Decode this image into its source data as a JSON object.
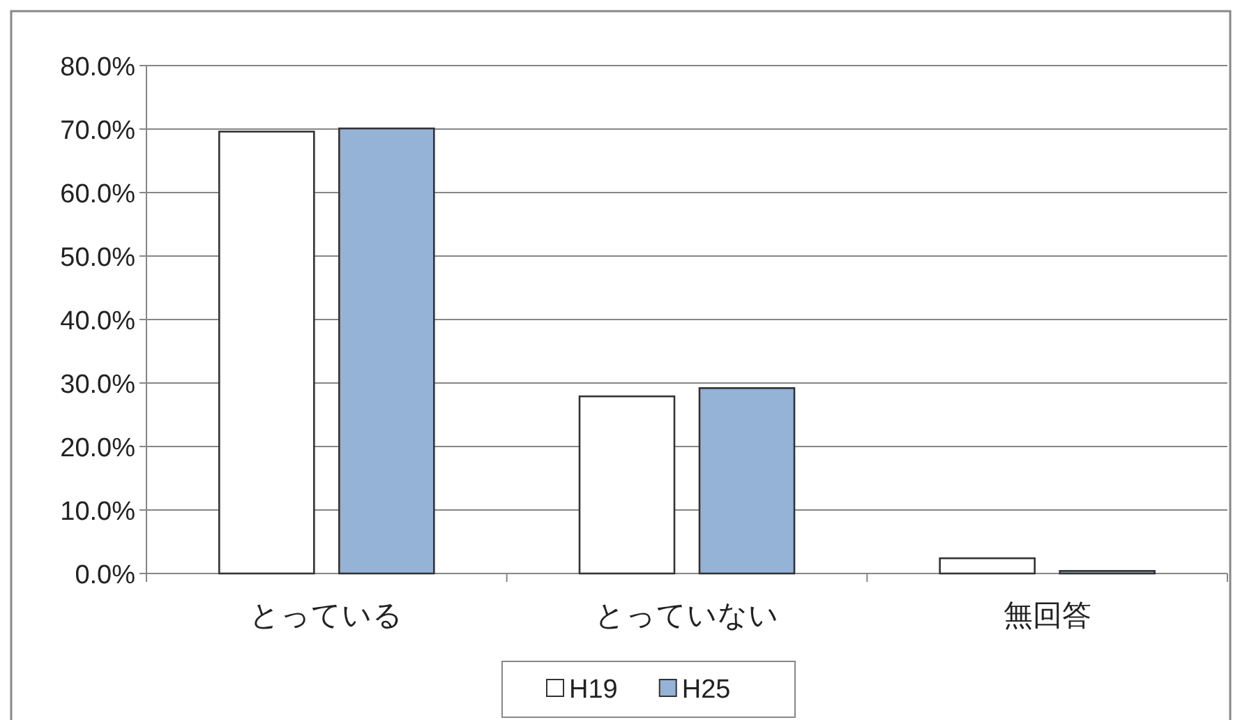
{
  "chart_data": {
    "type": "bar",
    "categories": [
      "とっている",
      "とっていない",
      "無回答"
    ],
    "series": [
      {
        "name": "H19",
        "color": "#ffffff",
        "values": [
          69.6,
          27.9,
          2.4
        ]
      },
      {
        "name": "H25",
        "color": "#95b3d7",
        "values": [
          70.1,
          29.2,
          0.4
        ]
      }
    ],
    "ylim": [
      0,
      80
    ],
    "yticks": [
      {
        "value": 0,
        "label": "0.0%"
      },
      {
        "value": 10,
        "label": "10.0%"
      },
      {
        "value": 20,
        "label": "20.0%"
      },
      {
        "value": 30,
        "label": "30.0%"
      },
      {
        "value": 40,
        "label": "40.0%"
      },
      {
        "value": 50,
        "label": "50.0%"
      },
      {
        "value": 60,
        "label": "60.0%"
      },
      {
        "value": 70,
        "label": "70.0%"
      },
      {
        "value": 80,
        "label": "80.0%"
      }
    ],
    "grid": "y",
    "legend": "bottom"
  }
}
